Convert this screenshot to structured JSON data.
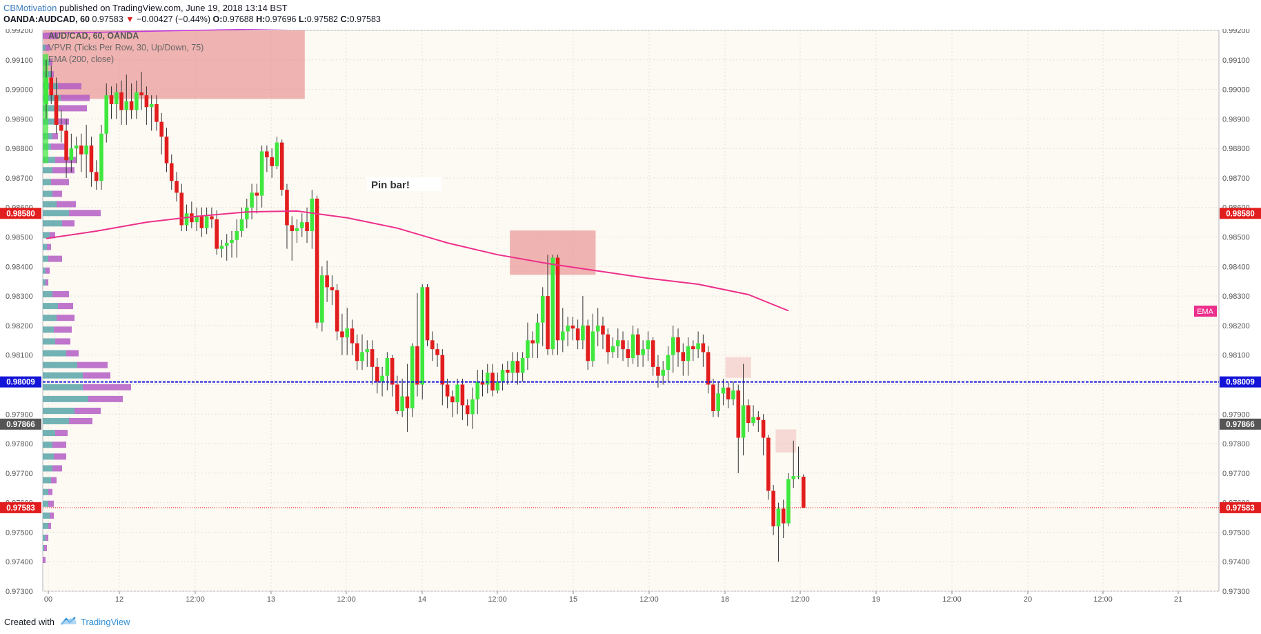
{
  "header": {
    "author": "CBMotivation",
    "published": "published on TradingView.com, June 19, 2018 13:14 BST",
    "symbol": "OANDA:AUDCAD, 60",
    "last": "0.97583",
    "change": "−0.00427 (−0.44%)",
    "ohlc": {
      "o_label": "O:",
      "o": "0.97688",
      "h_label": "H:",
      "h": "0.97696",
      "l_label": "L:",
      "l": "0.97582",
      "c_label": "C:",
      "c": "0.97583"
    }
  },
  "legend": {
    "line1": "AUD/CAD, 60, OANDA",
    "line2": "VPVR (Ticks Per Row, 30, Up/Down, 75)",
    "line3": "EMA (200, close)"
  },
  "annotation": {
    "pin_bar": "Pin bar!"
  },
  "colors": {
    "background": "#fdf9f3",
    "bull": "#3ee83e",
    "bear": "#e21d1d",
    "ema": "#ec2f8a",
    "support_line": "#1414d8",
    "zone": "#e88e8e",
    "vp_up": "#5aa6a8",
    "vp_down": "#b45ec4"
  },
  "footer": {
    "created": "Created with",
    "brand": "TradingView"
  },
  "chart_data": {
    "type": "candlestick",
    "timeframe": "60",
    "y_axis": {
      "min": 0.973,
      "max": 0.992,
      "ticks": [
        "0.99200",
        "0.99100",
        "0.99000",
        "0.98900",
        "0.98800",
        "0.98700",
        "0.98600",
        "0.98500",
        "0.98400",
        "0.98300",
        "0.98200",
        "0.98100",
        "0.98000",
        "0.97900",
        "0.97800",
        "0.97700",
        "0.97600",
        "0.97500",
        "0.97400",
        "0.97300"
      ]
    },
    "x_axis": {
      "labels": [
        "00",
        "12",
        "12:00",
        "13",
        "12:00",
        "14",
        "12:00",
        "15",
        "12:00",
        "18",
        "12:00",
        "19",
        "12:00",
        "20",
        "12:00",
        "21"
      ]
    },
    "price_labels": [
      {
        "value": "0.98580",
        "color": "#e21d1d"
      },
      {
        "value": "0.98009",
        "color": "#1414d8"
      },
      {
        "value": "0.97866",
        "color": "#555555"
      },
      {
        "value": "0.97583",
        "color": "#e21d1d"
      }
    ],
    "ema_label": "EMA",
    "horizontal_line": 0.98009,
    "last_price": 0.97583,
    "candles": [
      [
        0.9895,
        0.9904,
        0.991,
        0.989
      ],
      [
        0.9904,
        0.9898,
        0.9908,
        0.9895
      ],
      [
        0.9898,
        0.9888,
        0.9904,
        0.9885
      ],
      [
        0.9888,
        0.9886,
        0.9893,
        0.9882
      ],
      [
        0.9886,
        0.9876,
        0.989,
        0.987
      ],
      [
        0.9876,
        0.988,
        0.9885,
        0.9872
      ],
      [
        0.988,
        0.9881,
        0.9884,
        0.9875
      ],
      [
        0.9881,
        0.9878,
        0.9885,
        0.9872
      ],
      [
        0.9878,
        0.9881,
        0.9888,
        0.987
      ],
      [
        0.9881,
        0.9872,
        0.9884,
        0.9867
      ],
      [
        0.9872,
        0.9869,
        0.9876,
        0.9866
      ],
      [
        0.9869,
        0.9885,
        0.9888,
        0.9866
      ],
      [
        0.9885,
        0.9898,
        0.9902,
        0.9882
      ],
      [
        0.9898,
        0.9895,
        0.9901,
        0.989
      ],
      [
        0.9895,
        0.9899,
        0.9902,
        0.989
      ],
      [
        0.9899,
        0.9893,
        0.9903,
        0.9888
      ],
      [
        0.9893,
        0.9896,
        0.9905,
        0.9888
      ],
      [
        0.9896,
        0.9893,
        0.9902,
        0.989
      ],
      [
        0.9893,
        0.9899,
        0.9903,
        0.989
      ],
      [
        0.9899,
        0.9898,
        0.9906,
        0.9893
      ],
      [
        0.9898,
        0.9894,
        0.9901,
        0.9888
      ],
      [
        0.9894,
        0.9895,
        0.9898,
        0.9886
      ],
      [
        0.9895,
        0.9889,
        0.9898,
        0.9886
      ],
      [
        0.9889,
        0.9884,
        0.9892,
        0.9878
      ],
      [
        0.9884,
        0.9875,
        0.9887,
        0.9872
      ],
      [
        0.9875,
        0.9869,
        0.9878,
        0.9866
      ],
      [
        0.9869,
        0.9865,
        0.9872,
        0.9862
      ],
      [
        0.9865,
        0.9854,
        0.9868,
        0.9852
      ],
      [
        0.9854,
        0.9858,
        0.9861,
        0.9852
      ],
      [
        0.9858,
        0.9855,
        0.9862,
        0.9853
      ],
      [
        0.9855,
        0.9857,
        0.986,
        0.9852
      ],
      [
        0.9857,
        0.9853,
        0.986,
        0.985
      ],
      [
        0.9853,
        0.9857,
        0.986,
        0.9851
      ],
      [
        0.9857,
        0.9856,
        0.986,
        0.9853
      ],
      [
        0.9856,
        0.9846,
        0.9859,
        0.9844
      ],
      [
        0.9846,
        0.9847,
        0.9849,
        0.9843
      ],
      [
        0.9847,
        0.9848,
        0.9851,
        0.9842
      ],
      [
        0.9848,
        0.9849,
        0.9852,
        0.9843
      ],
      [
        0.9849,
        0.9852,
        0.9856,
        0.9843
      ],
      [
        0.9852,
        0.9856,
        0.986,
        0.985
      ],
      [
        0.9856,
        0.986,
        0.9863,
        0.9853
      ],
      [
        0.986,
        0.9865,
        0.9868,
        0.9856
      ],
      [
        0.9865,
        0.9864,
        0.9868,
        0.9858
      ],
      [
        0.9864,
        0.9879,
        0.9881,
        0.986
      ],
      [
        0.9879,
        0.9877,
        0.9881,
        0.9872
      ],
      [
        0.9877,
        0.9874,
        0.988,
        0.987
      ],
      [
        0.9874,
        0.9882,
        0.9884,
        0.9873
      ],
      [
        0.9882,
        0.9866,
        0.9883,
        0.9864
      ],
      [
        0.9866,
        0.9854,
        0.9868,
        0.9846
      ],
      [
        0.9854,
        0.9852,
        0.9857,
        0.9842
      ],
      [
        0.9852,
        0.9853,
        0.9856,
        0.9848
      ],
      [
        0.9853,
        0.9855,
        0.9858,
        0.985
      ],
      [
        0.9855,
        0.9852,
        0.986,
        0.9848
      ],
      [
        0.9852,
        0.9863,
        0.9866,
        0.9846
      ],
      [
        0.9863,
        0.9821,
        0.9864,
        0.9819
      ],
      [
        0.9821,
        0.9837,
        0.984,
        0.9818
      ],
      [
        0.9837,
        0.9833,
        0.9842,
        0.9828
      ],
      [
        0.9833,
        0.9832,
        0.9837,
        0.9827
      ],
      [
        0.9832,
        0.9818,
        0.9834,
        0.9815
      ],
      [
        0.9818,
        0.9816,
        0.9824,
        0.981
      ],
      [
        0.9816,
        0.9819,
        0.9826,
        0.981
      ],
      [
        0.9819,
        0.9814,
        0.9822,
        0.981
      ],
      [
        0.9814,
        0.9808,
        0.9817,
        0.9805
      ],
      [
        0.9808,
        0.9811,
        0.9817,
        0.9805
      ],
      [
        0.9811,
        0.9812,
        0.9815,
        0.9806
      ],
      [
        0.9812,
        0.9806,
        0.9815,
        0.98
      ],
      [
        0.9806,
        0.9801,
        0.9809,
        0.9797
      ],
      [
        0.9801,
        0.9803,
        0.9806,
        0.9796
      ],
      [
        0.9803,
        0.9809,
        0.9811,
        0.9798
      ],
      [
        0.9809,
        0.98,
        0.981,
        0.9796
      ],
      [
        0.98,
        0.9791,
        0.9803,
        0.979
      ],
      [
        0.9791,
        0.9796,
        0.9802,
        0.9789
      ],
      [
        0.9796,
        0.9792,
        0.9807,
        0.9784
      ],
      [
        0.9792,
        0.9813,
        0.9814,
        0.9789
      ],
      [
        0.9813,
        0.98,
        0.9831,
        0.9796
      ],
      [
        0.98,
        0.9833,
        0.9834,
        0.9795
      ],
      [
        0.9833,
        0.9815,
        0.9834,
        0.9813
      ],
      [
        0.9815,
        0.9812,
        0.9818,
        0.9808
      ],
      [
        0.9812,
        0.981,
        0.9814,
        0.9806
      ],
      [
        0.981,
        0.98,
        0.9812,
        0.9793
      ],
      [
        0.98,
        0.9796,
        0.9802,
        0.9792
      ],
      [
        0.9796,
        0.9794,
        0.9798,
        0.9789
      ],
      [
        0.9794,
        0.98,
        0.9802,
        0.979
      ],
      [
        0.98,
        0.9793,
        0.9802,
        0.9788
      ],
      [
        0.9793,
        0.979,
        0.9795,
        0.9786
      ],
      [
        0.979,
        0.9795,
        0.9799,
        0.9785
      ],
      [
        0.9795,
        0.9801,
        0.9805,
        0.979
      ],
      [
        0.9801,
        0.98,
        0.9805,
        0.9796
      ],
      [
        0.98,
        0.9804,
        0.9807,
        0.9797
      ],
      [
        0.9804,
        0.9798,
        0.9807,
        0.9796
      ],
      [
        0.9798,
        0.9801,
        0.9804,
        0.9797
      ],
      [
        0.9801,
        0.9805,
        0.9807,
        0.9798
      ],
      [
        0.9805,
        0.9804,
        0.9808,
        0.98
      ],
      [
        0.9804,
        0.9808,
        0.9811,
        0.9801
      ],
      [
        0.9808,
        0.9804,
        0.9811,
        0.98
      ],
      [
        0.9804,
        0.9809,
        0.9811,
        0.9801
      ],
      [
        0.9809,
        0.9815,
        0.9821,
        0.9805
      ],
      [
        0.9815,
        0.9814,
        0.9818,
        0.9809
      ],
      [
        0.9814,
        0.9821,
        0.9824,
        0.9809
      ],
      [
        0.9821,
        0.983,
        0.9833,
        0.9813
      ],
      [
        0.983,
        0.9812,
        0.9844,
        0.981
      ],
      [
        0.9812,
        0.9843,
        0.9844,
        0.981
      ],
      [
        0.9843,
        0.9815,
        0.9844,
        0.981
      ],
      [
        0.9815,
        0.9818,
        0.9826,
        0.9811
      ],
      [
        0.9818,
        0.982,
        0.9823,
        0.9813
      ],
      [
        0.982,
        0.9819,
        0.9823,
        0.9815
      ],
      [
        0.9819,
        0.9815,
        0.9822,
        0.9812
      ],
      [
        0.9815,
        0.982,
        0.983,
        0.9812
      ],
      [
        0.982,
        0.9808,
        0.9822,
        0.9805
      ],
      [
        0.9808,
        0.9818,
        0.9824,
        0.9806
      ],
      [
        0.9818,
        0.982,
        0.9826,
        0.9813
      ],
      [
        0.982,
        0.9817,
        0.9823,
        0.9812
      ],
      [
        0.9817,
        0.9811,
        0.9819,
        0.9807
      ],
      [
        0.9811,
        0.9813,
        0.9816,
        0.9809
      ],
      [
        0.9813,
        0.9815,
        0.9819,
        0.9809
      ],
      [
        0.9815,
        0.9812,
        0.9818,
        0.9808
      ],
      [
        0.9812,
        0.9809,
        0.9815,
        0.9806
      ],
      [
        0.9809,
        0.9817,
        0.982,
        0.9807
      ],
      [
        0.9817,
        0.981,
        0.9819,
        0.9806
      ],
      [
        0.981,
        0.9812,
        0.9815,
        0.9806
      ],
      [
        0.9812,
        0.9815,
        0.9818,
        0.9808
      ],
      [
        0.9815,
        0.9806,
        0.9816,
        0.9803
      ],
      [
        0.9806,
        0.9803,
        0.981,
        0.9799
      ],
      [
        0.9803,
        0.9805,
        0.9808,
        0.98
      ],
      [
        0.9805,
        0.981,
        0.9813,
        0.9801
      ],
      [
        0.981,
        0.9816,
        0.982,
        0.9804
      ],
      [
        0.9816,
        0.9811,
        0.9819,
        0.9806
      ],
      [
        0.9811,
        0.9808,
        0.9814,
        0.9803
      ],
      [
        0.9808,
        0.9813,
        0.9816,
        0.9803
      ],
      [
        0.9813,
        0.9812,
        0.9815,
        0.9808
      ],
      [
        0.9812,
        0.9814,
        0.9818,
        0.9809
      ],
      [
        0.9814,
        0.9811,
        0.9817,
        0.9806
      ],
      [
        0.9811,
        0.98,
        0.9813,
        0.9797
      ],
      [
        0.98,
        0.9791,
        0.9802,
        0.9789
      ],
      [
        0.9791,
        0.9797,
        0.9801,
        0.9789
      ],
      [
        0.9797,
        0.9799,
        0.9802,
        0.9793
      ],
      [
        0.9799,
        0.9795,
        0.9801,
        0.9792
      ],
      [
        0.9795,
        0.9798,
        0.9801,
        0.9793
      ],
      [
        0.9798,
        0.9782,
        0.98,
        0.977
      ],
      [
        0.9782,
        0.9793,
        0.9807,
        0.9776
      ],
      [
        0.9793,
        0.9787,
        0.9795,
        0.9784
      ],
      [
        0.9787,
        0.9789,
        0.9793,
        0.9786
      ],
      [
        0.9789,
        0.9788,
        0.9791,
        0.9784
      ],
      [
        0.9788,
        0.9782,
        0.979,
        0.9776
      ],
      [
        0.9782,
        0.9764,
        0.9783,
        0.9761
      ],
      [
        0.9764,
        0.9752,
        0.9766,
        0.9749
      ],
      [
        0.9752,
        0.9758,
        0.976,
        0.974
      ],
      [
        0.9758,
        0.9753,
        0.9761,
        0.9748
      ],
      [
        0.9753,
        0.9768,
        0.977,
        0.9752
      ],
      [
        0.9768,
        0.9769,
        0.9781,
        0.9765
      ],
      [
        0.9769,
        0.9769,
        0.9779,
        0.9768
      ],
      [
        0.97688,
        0.97583,
        0.97696,
        0.97582
      ]
    ],
    "ema": [
      [
        0,
        0.98495
      ],
      [
        10,
        0.9852
      ],
      [
        20,
        0.9855
      ],
      [
        30,
        0.9857
      ],
      [
        40,
        0.98585
      ],
      [
        50,
        0.98588
      ],
      [
        60,
        0.98565
      ],
      [
        70,
        0.9853
      ],
      [
        80,
        0.9848
      ],
      [
        90,
        0.9844
      ],
      [
        100,
        0.9841
      ],
      [
        110,
        0.98385
      ],
      [
        120,
        0.9836
      ],
      [
        130,
        0.9834
      ],
      [
        140,
        0.98305
      ],
      [
        148,
        0.9825
      ]
    ],
    "zones": [
      {
        "i0": 0,
        "i1": 51,
        "top": 0.992,
        "bottom": 0.98968,
        "opacity": 0.65
      },
      {
        "i0": 93,
        "i1": 109,
        "top": 0.98522,
        "bottom": 0.98372,
        "opacity": 0.65
      },
      {
        "i0": 136,
        "i1": 140,
        "top": 0.98093,
        "bottom": 0.98023,
        "opacity": 0.3
      },
      {
        "i0": 146,
        "i1": 149,
        "top": 0.97848,
        "bottom": 0.9777,
        "opacity": 0.3
      }
    ],
    "volume_profile": {
      "bins": [
        {
          "p": 0.9918,
          "up": 0,
          "down": 22
        },
        {
          "p": 0.9914,
          "up": 4,
          "down": 6
        },
        {
          "p": 0.9909,
          "up": 10,
          "down": 4
        },
        {
          "p": 0.9905,
          "up": 12,
          "down": 4
        },
        {
          "p": 0.9901,
          "up": 22,
          "down": 34
        },
        {
          "p": 0.9897,
          "up": 26,
          "down": 42
        },
        {
          "p": 0.98935,
          "up": 24,
          "down": 40
        },
        {
          "p": 0.9889,
          "up": 20,
          "down": 18
        },
        {
          "p": 0.9884,
          "up": 14,
          "down": 8
        },
        {
          "p": 0.98805,
          "up": 12,
          "down": 20
        },
        {
          "p": 0.9876,
          "up": 18,
          "down": 30
        },
        {
          "p": 0.98725,
          "up": 14,
          "down": 32
        },
        {
          "p": 0.98685,
          "up": 12,
          "down": 26
        },
        {
          "p": 0.98645,
          "up": 14,
          "down": 14
        },
        {
          "p": 0.9861,
          "up": 20,
          "down": 28
        },
        {
          "p": 0.9858,
          "up": 38,
          "down": 46
        },
        {
          "p": 0.98545,
          "up": 28,
          "down": 18
        },
        {
          "p": 0.98505,
          "up": 10,
          "down": 8
        },
        {
          "p": 0.98465,
          "up": 6,
          "down": 6
        },
        {
          "p": 0.98425,
          "up": 8,
          "down": 20
        },
        {
          "p": 0.98385,
          "up": 4,
          "down": 6
        },
        {
          "p": 0.98345,
          "up": 4,
          "down": 4
        },
        {
          "p": 0.98305,
          "up": 14,
          "down": 24
        },
        {
          "p": 0.98265,
          "up": 22,
          "down": 22
        },
        {
          "p": 0.98225,
          "up": 20,
          "down": 26
        },
        {
          "p": 0.98185,
          "up": 16,
          "down": 26
        },
        {
          "p": 0.98145,
          "up": 18,
          "down": 22
        },
        {
          "p": 0.98105,
          "up": 34,
          "down": 18
        },
        {
          "p": 0.98065,
          "up": 50,
          "down": 44
        },
        {
          "p": 0.9803,
          "up": 58,
          "down": 40
        },
        {
          "p": 0.9799,
          "up": 58,
          "down": 70
        },
        {
          "p": 0.9795,
          "up": 66,
          "down": 50
        },
        {
          "p": 0.9791,
          "up": 46,
          "down": 38
        },
        {
          "p": 0.97875,
          "up": 38,
          "down": 34
        },
        {
          "p": 0.97835,
          "up": 18,
          "down": 18
        },
        {
          "p": 0.97795,
          "up": 14,
          "down": 20
        },
        {
          "p": 0.97755,
          "up": 16,
          "down": 18
        },
        {
          "p": 0.97715,
          "up": 14,
          "down": 14
        },
        {
          "p": 0.97675,
          "up": 12,
          "down": 8
        },
        {
          "p": 0.97635,
          "up": 8,
          "down": 6
        },
        {
          "p": 0.97595,
          "up": 8,
          "down": 8
        },
        {
          "p": 0.97555,
          "up": 10,
          "down": 6
        },
        {
          "p": 0.9752,
          "up": 8,
          "down": 4
        },
        {
          "p": 0.9748,
          "up": 4,
          "down": 4
        },
        {
          "p": 0.97445,
          "up": 2,
          "down": 4
        },
        {
          "p": 0.97405,
          "up": 0,
          "down": 4
        }
      ]
    },
    "pin_bar_index": 53
  }
}
